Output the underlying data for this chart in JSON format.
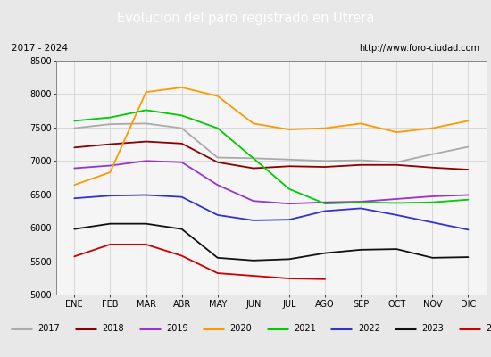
{
  "title": "Evolucion del paro registrado en Utrera",
  "subtitle_left": "2017 - 2024",
  "subtitle_right": "http://www.foro-ciudad.com",
  "x_labels": [
    "ENE",
    "FEB",
    "MAR",
    "ABR",
    "MAY",
    "JUN",
    "JUL",
    "AGO",
    "SEP",
    "OCT",
    "NOV",
    "DIC"
  ],
  "ylim": [
    5000,
    8500
  ],
  "yticks": [
    5000,
    5500,
    6000,
    6500,
    7000,
    7500,
    8000,
    8500
  ],
  "background_color": "#e8e8e8",
  "plot_bg": "#f5f5f5",
  "title_bg": "#5b9bd5",
  "title_color": "#ffffff",
  "border_color": "#444444",
  "series": {
    "2017": {
      "color": "#aaaaaa",
      "data": [
        7490,
        7550,
        7560,
        7490,
        7050,
        7040,
        7020,
        7000,
        7010,
        6980,
        7100,
        7210
      ]
    },
    "2018": {
      "color": "#8b0000",
      "data": [
        7200,
        7250,
        7290,
        7260,
        6980,
        6890,
        6920,
        6910,
        6940,
        6940,
        6900,
        6870
      ]
    },
    "2019": {
      "color": "#9933cc",
      "data": [
        6890,
        6930,
        7000,
        6980,
        6640,
        6400,
        6360,
        6380,
        6390,
        6430,
        6470,
        6490
      ]
    },
    "2020": {
      "color": "#ff9900",
      "data": [
        6640,
        6830,
        8030,
        8100,
        7970,
        7560,
        7470,
        7490,
        7560,
        7430,
        7490,
        7600
      ]
    },
    "2021": {
      "color": "#00cc00",
      "data": [
        7600,
        7650,
        7760,
        7680,
        7490,
        7040,
        6580,
        6360,
        6380,
        6370,
        6380,
        6420
      ]
    },
    "2022": {
      "color": "#3333cc",
      "data": [
        6440,
        6480,
        6490,
        6460,
        6190,
        6110,
        6120,
        6250,
        6290,
        6190,
        6080,
        5970
      ]
    },
    "2023": {
      "color": "#111111",
      "data": [
        5980,
        6060,
        6060,
        5980,
        5550,
        5510,
        5530,
        5620,
        5670,
        5680,
        5550,
        5560
      ]
    },
    "2024": {
      "color": "#cc0000",
      "data": [
        5570,
        5750,
        5750,
        5580,
        5320,
        5280,
        5240,
        5230,
        null,
        null,
        null,
        null
      ]
    }
  }
}
